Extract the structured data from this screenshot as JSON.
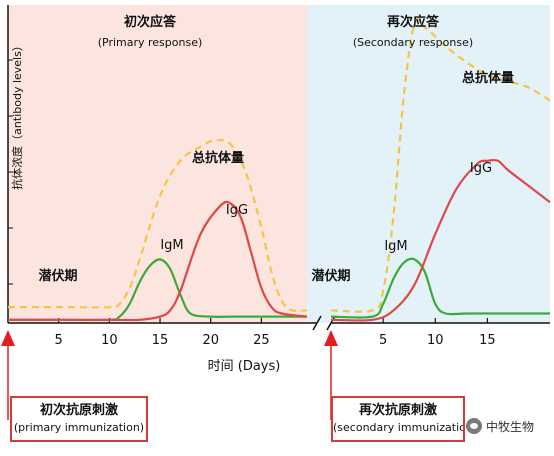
{
  "labels": {
    "ylabel": "抗体浓度（antibody levels）",
    "xlabel": "时间 (Days)",
    "primary_title_cn": "初次应答",
    "primary_title_en": "(Primary response)",
    "secondary_title_cn": "再次应答",
    "secondary_title_en": "(Secondary response)",
    "total_label_primary": "总抗体量",
    "total_label_secondary": "总抗体量",
    "igm_label_primary": "IgM",
    "igg_label_primary": "IgG",
    "igm_label_secondary": "IgM",
    "igg_label_secondary": "IgG",
    "latent_primary": "潜伏期",
    "latent_secondary": "潜伏期",
    "callout_primary_cn": "初次抗原刺激",
    "callout_primary_en": "(primary immunization)",
    "callout_secondary_cn": "再次抗原刺激",
    "callout_secondary_en": "(secondary immunizatio",
    "watermark": "中牧生物"
  },
  "colors": {
    "primary_bg": "#fce4df",
    "secondary_bg": "#e3f2f8",
    "total": "#f5c542",
    "igm": "#3aaa3a",
    "igg": "#e04848",
    "arrow": "#e02020"
  },
  "chart_data": [
    {
      "type": "line",
      "panel": "primary",
      "title": "初次应答 (Primary response)",
      "xlabel": "时间 (Days)",
      "ylabel": "抗体浓度（antibody levels）",
      "xlim": [
        0,
        29.5
      ],
      "ylim": [
        0,
        100
      ],
      "xticks": [
        5,
        10,
        15,
        20,
        25
      ],
      "series": [
        {
          "name": "总抗体量",
          "style": "dashed",
          "x": [
            0,
            5,
            10,
            11,
            12,
            13,
            15,
            17,
            19,
            20.5,
            22,
            23.5,
            25,
            26,
            27,
            28,
            29.5
          ],
          "y": [
            5,
            5,
            5,
            6,
            11,
            20,
            40,
            51,
            55.5,
            57.5,
            56,
            47,
            30,
            16,
            7,
            4,
            4
          ]
        },
        {
          "name": "IgM",
          "x": [
            0,
            5,
            10,
            11,
            12,
            13,
            14,
            15,
            16,
            17,
            18,
            20,
            22,
            25,
            29.5
          ],
          "y": [
            1,
            1,
            1,
            2,
            6,
            13,
            18,
            20,
            17,
            9,
            3,
            2,
            2,
            2,
            2
          ]
        },
        {
          "name": "IgG",
          "x": [
            0,
            5,
            10,
            13,
            15,
            16,
            17,
            19,
            21,
            22,
            23,
            24,
            25,
            26,
            27,
            29.5
          ],
          "y": [
            1,
            1,
            1,
            1,
            2,
            4,
            10,
            28,
            37,
            37.5,
            33,
            22,
            11,
            5,
            3,
            2
          ]
        }
      ]
    },
    {
      "type": "line",
      "panel": "secondary",
      "title": "再次应答 (Secondary response)",
      "xlabel": "时间 (Days)",
      "ylabel": "",
      "xlim": [
        0,
        21
      ],
      "ylim": [
        0,
        100
      ],
      "xticks": [
        5,
        10,
        15
      ],
      "series": [
        {
          "name": "总抗体量",
          "style": "dashed",
          "x": [
            0,
            4,
            5,
            6,
            7,
            8,
            9,
            11,
            13,
            15,
            17,
            19,
            21
          ],
          "y": [
            4,
            4,
            10,
            34,
            72,
            94,
            93,
            87,
            82,
            78,
            76,
            74,
            70
          ]
        },
        {
          "name": "IgM",
          "x": [
            0,
            4,
            5,
            6,
            7,
            8,
            9,
            10,
            11,
            13,
            16,
            21
          ],
          "y": [
            2,
            2,
            6,
            14,
            19,
            20,
            16,
            6,
            3,
            3,
            3,
            3
          ]
        },
        {
          "name": "IgG",
          "x": [
            0,
            4,
            6,
            8,
            10,
            12,
            14,
            15,
            16,
            17,
            19,
            21
          ],
          "y": [
            1,
            1,
            4,
            12,
            28,
            42,
            50,
            51,
            51,
            48,
            43,
            38
          ]
        }
      ]
    }
  ]
}
